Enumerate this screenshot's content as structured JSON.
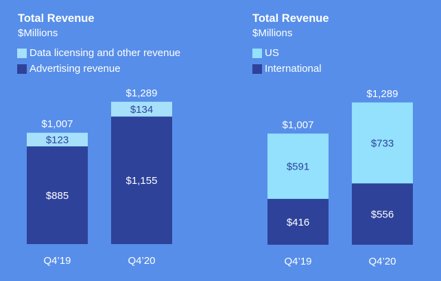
{
  "colors": {
    "background": "#578ee9",
    "light": "#a6e0fb",
    "light_us": "#93e1fd",
    "dark": "#2e429a",
    "text_dark": "#2e429a",
    "text_light": "#ffffff"
  },
  "chart_data": [
    {
      "type": "bar",
      "stacked": true,
      "title": "Total Revenue",
      "subtitle": "$Millions",
      "categories": [
        "Q4’19",
        "Q4’20"
      ],
      "totals": [
        "$1,007",
        "$1,289"
      ],
      "series": [
        {
          "name": "Advertising revenue",
          "values": [
            885,
            1155
          ],
          "labels": [
            "$885",
            "$1,155"
          ],
          "color": "#2e429a",
          "label_color": "#ffffff"
        },
        {
          "name": "Data licensing and other revenue",
          "values": [
            123,
            134
          ],
          "labels": [
            "$123",
            "$134"
          ],
          "color": "#a6e0fb",
          "label_color": "#2e429a"
        }
      ],
      "legend": [
        "Data licensing and other revenue",
        "Advertising revenue"
      ],
      "legend_placement": "top-left",
      "grid": false,
      "ylim": [
        0,
        1289
      ]
    },
    {
      "type": "bar",
      "stacked": true,
      "title": "Total Revenue",
      "subtitle": "$Millions",
      "categories": [
        "Q4’19",
        "Q4’20"
      ],
      "totals": [
        "$1,007",
        "$1,289"
      ],
      "series": [
        {
          "name": "International",
          "values": [
            416,
            556
          ],
          "labels": [
            "$416",
            "$556"
          ],
          "color": "#2e429a",
          "label_color": "#ffffff"
        },
        {
          "name": "US",
          "values": [
            591,
            733
          ],
          "labels": [
            "$591",
            "$733"
          ],
          "color": "#93e1fd",
          "label_color": "#2e429a"
        }
      ],
      "legend": [
        "US",
        "International"
      ],
      "legend_placement": "top-left",
      "grid": false,
      "ylim": [
        0,
        1289
      ]
    }
  ]
}
